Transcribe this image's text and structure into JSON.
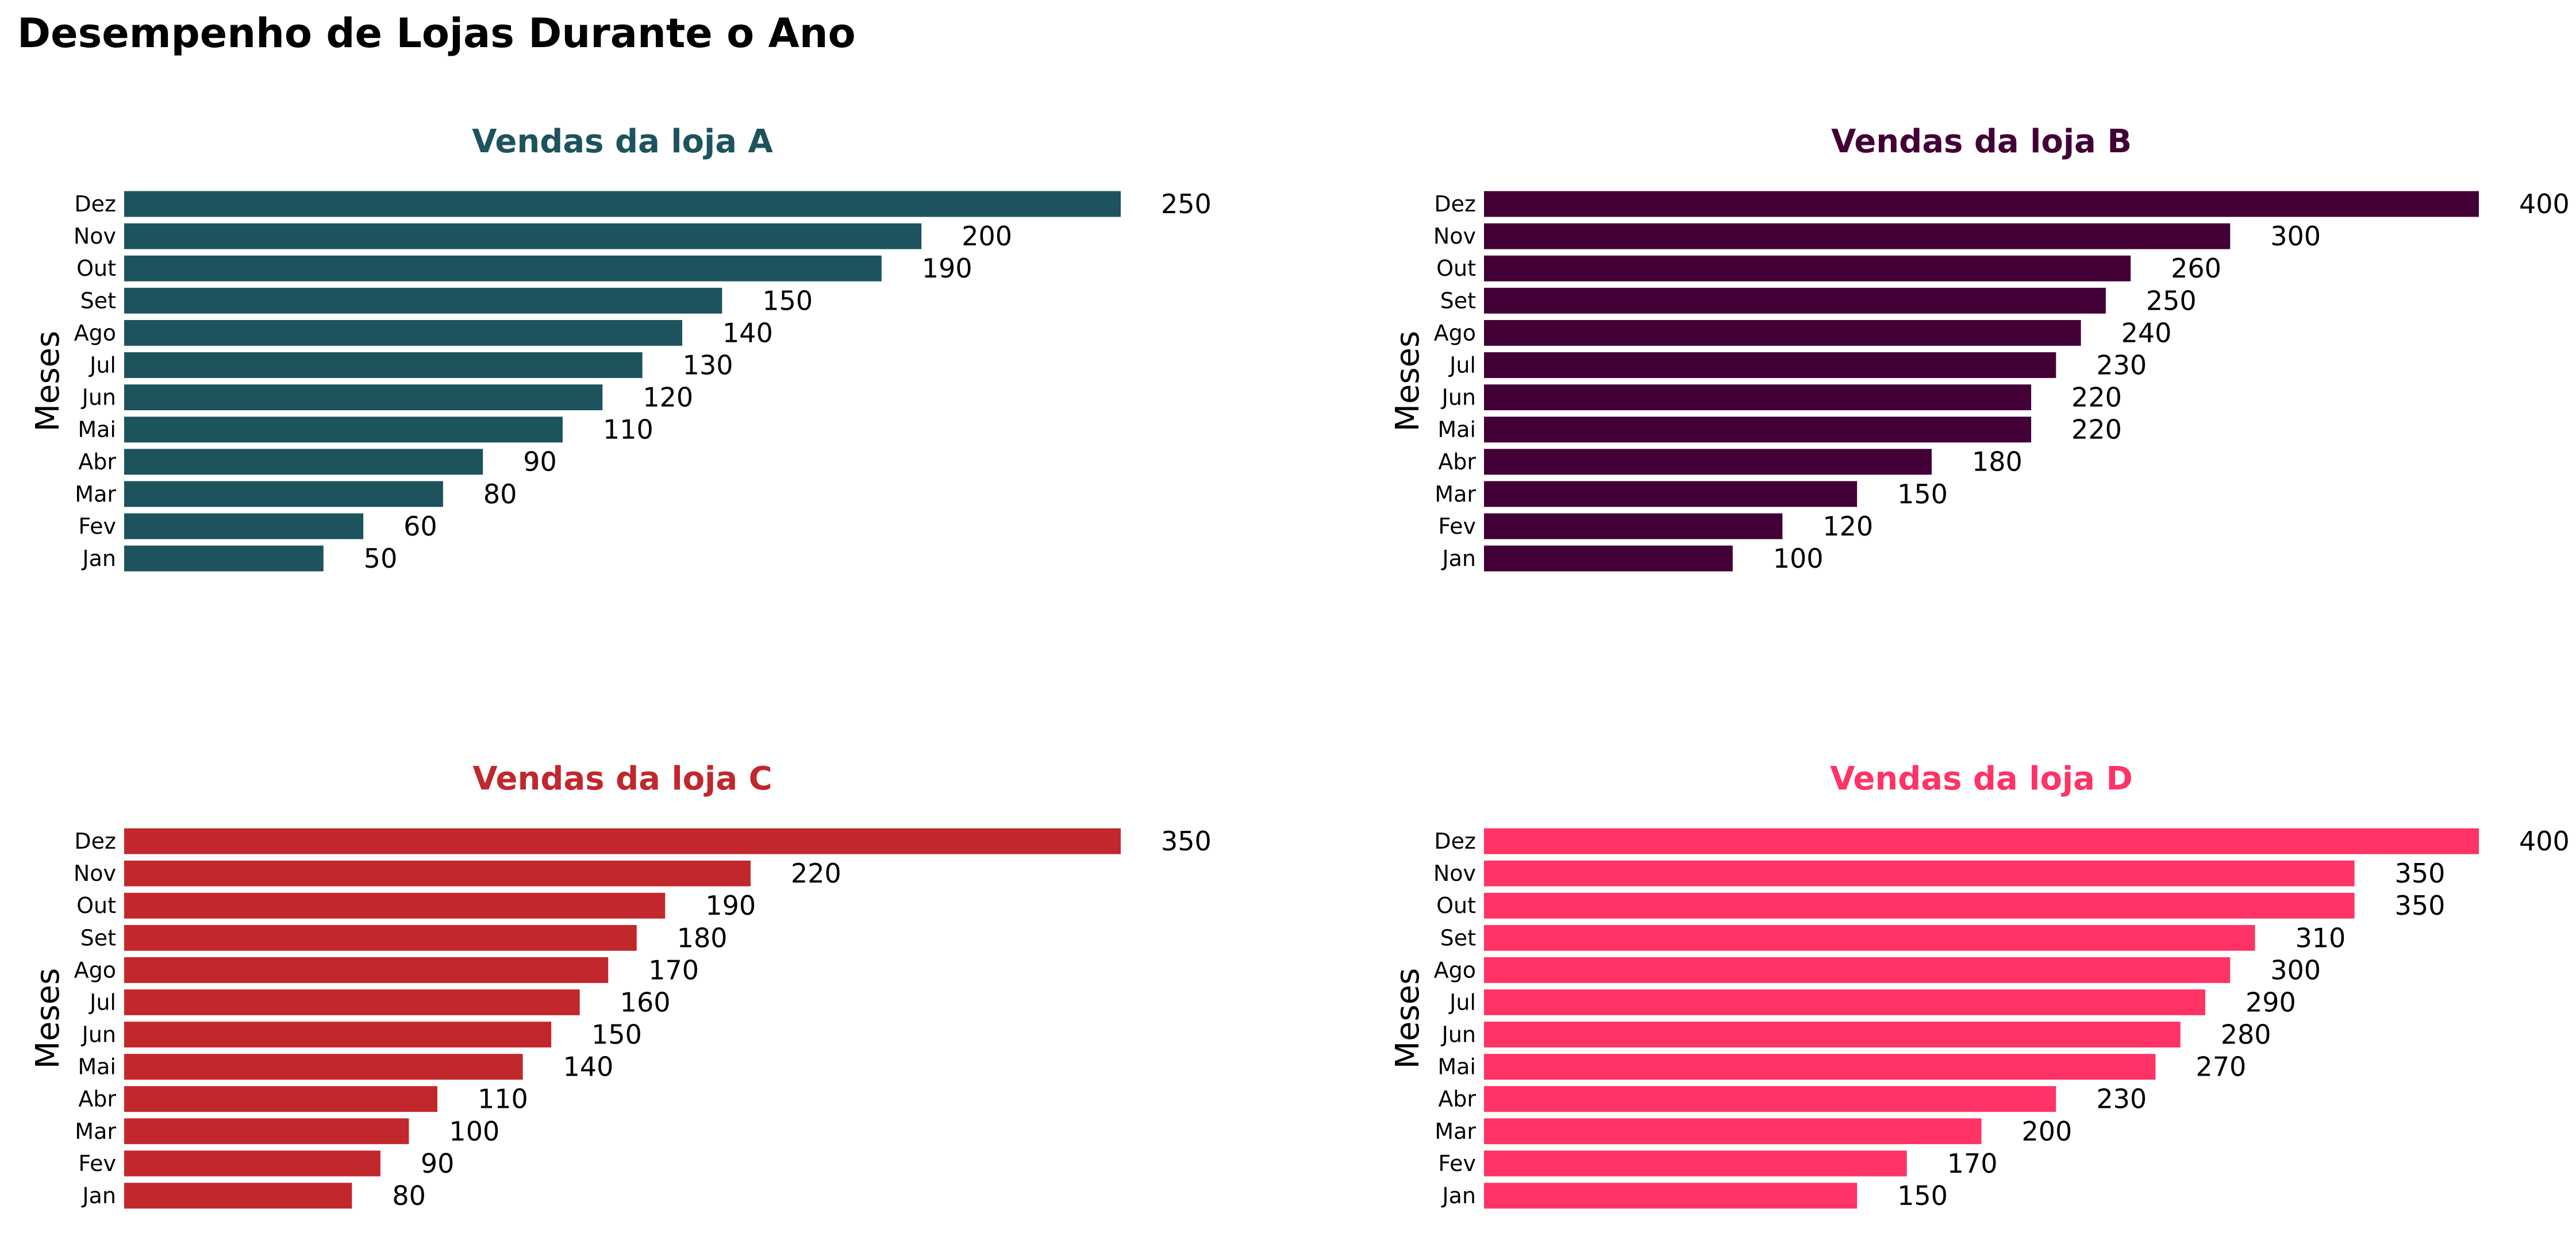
{
  "chart_data": {
    "title": "Desempenho de Lojas Durante o Ano",
    "panels": [
      {
        "type": "bar",
        "orientation": "horizontal",
        "title": "Vendas da loja A",
        "color": "#1d535c",
        "ylabel": "Meses",
        "xlabel": "",
        "categories": [
          "Dez",
          "Nov",
          "Out",
          "Set",
          "Ago",
          "Jul",
          "Jun",
          "Mai",
          "Abr",
          "Mar",
          "Fev",
          "Jan"
        ],
        "values": [
          250,
          200,
          190,
          150,
          140,
          130,
          120,
          110,
          90,
          80,
          60,
          50
        ],
        "xlim": [
          0,
          250
        ],
        "grid": false
      },
      {
        "type": "bar",
        "orientation": "horizontal",
        "title": "Vendas da loja B",
        "color": "#430036",
        "ylabel": "Meses",
        "xlabel": "",
        "categories": [
          "Dez",
          "Nov",
          "Out",
          "Set",
          "Ago",
          "Jul",
          "Jun",
          "Mai",
          "Abr",
          "Mar",
          "Fev",
          "Jan"
        ],
        "values": [
          400,
          300,
          260,
          250,
          240,
          230,
          220,
          220,
          180,
          150,
          120,
          100
        ],
        "xlim": [
          0,
          400
        ],
        "grid": false
      },
      {
        "type": "bar",
        "orientation": "horizontal",
        "title": "Vendas da loja C",
        "color": "#c1272d",
        "ylabel": "Meses",
        "xlabel": "",
        "categories": [
          "Dez",
          "Nov",
          "Out",
          "Set",
          "Ago",
          "Jul",
          "Jun",
          "Mai",
          "Abr",
          "Mar",
          "Fev",
          "Jan"
        ],
        "values": [
          350,
          220,
          190,
          180,
          170,
          160,
          150,
          140,
          110,
          100,
          90,
          80
        ],
        "xlim": [
          0,
          350
        ],
        "grid": false
      },
      {
        "type": "bar",
        "orientation": "horizontal",
        "title": "Vendas da loja D",
        "color": "#ff3366",
        "ylabel": "Meses",
        "xlabel": "",
        "categories": [
          "Dez",
          "Nov",
          "Out",
          "Set",
          "Ago",
          "Jul",
          "Jun",
          "Mai",
          "Abr",
          "Mar",
          "Fev",
          "Jan"
        ],
        "values": [
          400,
          350,
          350,
          310,
          300,
          290,
          280,
          270,
          230,
          200,
          170,
          150
        ],
        "xlim": [
          0,
          400
        ],
        "grid": false
      }
    ]
  }
}
